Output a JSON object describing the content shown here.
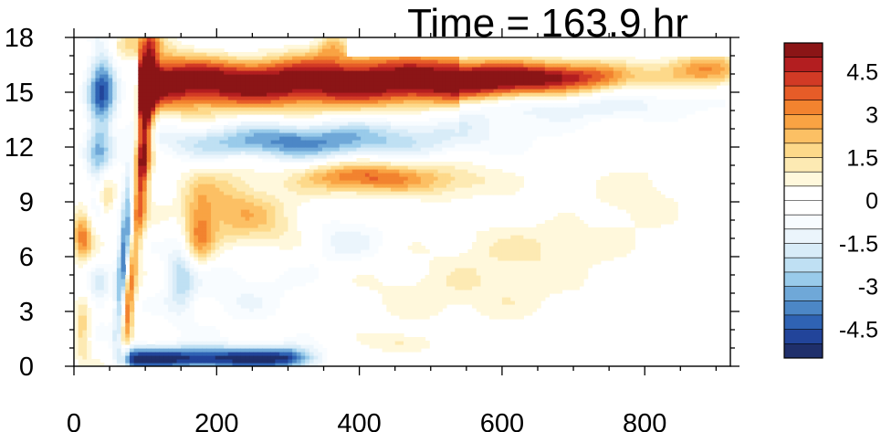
{
  "chart_data": {
    "type": "heatmap",
    "title": "Time = 163.9 hr",
    "xlabel": "",
    "ylabel": "",
    "xlim": [
      0,
      920
    ],
    "ylim": [
      0,
      18
    ],
    "x_ticks": [
      "0",
      "200",
      "400",
      "600",
      "800"
    ],
    "x_tick_values": [
      0,
      200,
      400,
      600,
      800
    ],
    "y_ticks": [
      "0",
      "3",
      "6",
      "9",
      "12",
      "15",
      "18"
    ],
    "y_tick_values": [
      0,
      3,
      6,
      9,
      12,
      15,
      18
    ],
    "colorbar": {
      "min": -5.5,
      "max": 5.5,
      "step": 0.5,
      "labels": [
        "4.5",
        "3",
        "1.5",
        "0",
        "-1.5",
        "-3",
        "-4.5"
      ],
      "label_values": [
        4.5,
        3,
        1.5,
        0,
        -1.5,
        -3,
        -4.5
      ],
      "colors": [
        "#1f2f6b",
        "#22449a",
        "#2f63b4",
        "#4c87c6",
        "#6fa8d8",
        "#99cbea",
        "#bfe0f3",
        "#d8ecf8",
        "#ebf5fc",
        "#f8fcff",
        "#ffffff",
        "#ffffff",
        "#fff8dc",
        "#fdeab3",
        "#fdd98a",
        "#fcc064",
        "#f9a343",
        "#f2832f",
        "#e65c28",
        "#d23a25",
        "#b31e20",
        "#8b1516"
      ]
    },
    "features": [
      {
        "name": "strong positive band",
        "x_range": [
          95,
          560
        ],
        "y_center": 15.7,
        "peak": 5.5
      },
      {
        "name": "positive extension",
        "x_range": [
          560,
          900
        ],
        "y_center": 16.0,
        "peak": 2.5
      },
      {
        "name": "negative band",
        "x_range": [
          110,
          480
        ],
        "y_center": 12.3,
        "peak": -3.5
      },
      {
        "name": "positive blob",
        "x_range": [
          330,
          460
        ],
        "y_center": 10.3,
        "peak": 3.2
      },
      {
        "name": "negative surface band",
        "x_range": [
          60,
          350
        ],
        "y_center": 0.5,
        "peak": -5.0
      },
      {
        "name": "early vertical dipole",
        "x_range": [
          60,
          110
        ],
        "y_center": 9.0,
        "peak": 5.5
      }
    ]
  }
}
